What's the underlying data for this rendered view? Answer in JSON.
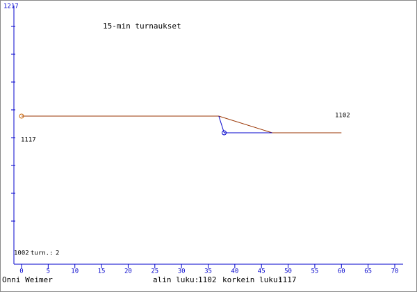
{
  "chart_data": {
    "type": "line",
    "title": "15-min turnaukset",
    "xlim": [
      0,
      70
    ],
    "xticks": [
      0,
      5,
      10,
      15,
      20,
      25,
      30,
      35,
      40,
      45,
      50,
      55,
      60,
      65,
      70
    ],
    "ylim": [
      1002,
      1217
    ],
    "series": [
      {
        "color": "#993300",
        "x": [
          0,
          37,
          47,
          60
        ],
        "values": [
          1117,
          1117,
          1102,
          1102
        ]
      },
      {
        "color": "#0000cc",
        "x": [
          37,
          38,
          47
        ],
        "values": [
          1117,
          1102,
          1102
        ]
      }
    ],
    "markers": [
      {
        "x": 0,
        "value": 1117,
        "color": "#cc6600"
      },
      {
        "x": 38,
        "value": 1102,
        "color": "#0000cc"
      }
    ],
    "annotations": [
      "1117",
      "1102"
    ],
    "footer": {
      "player": "Onni Weimer",
      "min_label": "alin luku:",
      "min": 1102,
      "max_label": "korkein luku:",
      "max": 1117,
      "games_label": "turn.:",
      "games": 2
    }
  }
}
